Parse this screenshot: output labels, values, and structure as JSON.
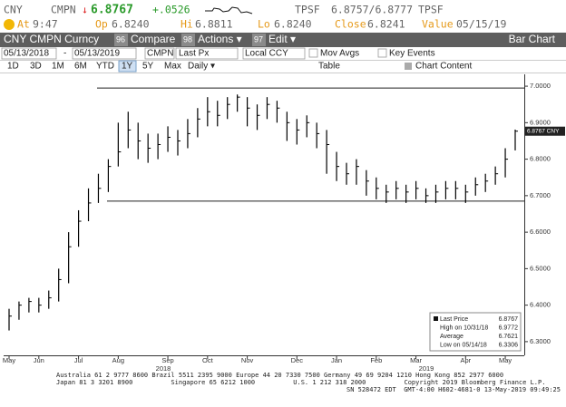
{
  "header": {
    "ticker": "CNY",
    "source": "CMPN",
    "arrow": "↓",
    "last": "6.8767",
    "change": "+.0526",
    "tpsf1": "TPSF",
    "bid_ask": "6.8757/6.8777",
    "tpsf2": "TPSF",
    "at_label": "At",
    "time": "9:47",
    "op_label": "Op",
    "op": "6.8240",
    "hi_label": "Hi",
    "hi": "6.8811",
    "lo_label": "Lo",
    "lo": "6.8240",
    "close_label": "Close",
    "close": "6.8241",
    "value_label": "Value",
    "value_date": "05/15/19"
  },
  "toolbar": {
    "security": "CNY CMPN Curncy",
    "compare_key": "96",
    "compare": "Compare",
    "actions_key": "98",
    "actions": "Actions ▾",
    "edit_key": "97",
    "edit": "Edit ▾",
    "view": "Bar Chart"
  },
  "controls": {
    "start": "05/13/2018",
    "dash": "-",
    "end": "05/13/2019",
    "source": "CMPN",
    "field": "Last Px",
    "currency": "Local CCY",
    "mov_avgs": "Mov Avgs",
    "key_events": "Key Events",
    "periods": [
      "1D",
      "3D",
      "1M",
      "6M",
      "YTD",
      "1Y",
      "5Y",
      "Max"
    ],
    "frequency": "Daily ▾",
    "table": "Table",
    "chart_content": "Chart Content"
  },
  "chart_data": {
    "type": "ohlc",
    "color": "#000000",
    "grid": false,
    "categories": [
      "May",
      null,
      null,
      "Jun",
      null,
      null,
      null,
      "Jul",
      null,
      null,
      null,
      "Aug",
      null,
      null,
      null,
      null,
      "Sep",
      null,
      null,
      null,
      "Oct",
      null,
      null,
      null,
      "Nov",
      null,
      null,
      null,
      null,
      "Dec",
      null,
      null,
      null,
      "Jan",
      null,
      null,
      null,
      "Feb",
      null,
      null,
      null,
      "Mar",
      null,
      null,
      null,
      null,
      "Apr",
      null,
      null,
      null,
      "May",
      null
    ],
    "high": [
      6.39,
      6.41,
      6.42,
      6.42,
      6.44,
      6.5,
      6.6,
      6.66,
      6.72,
      6.76,
      6.8,
      6.9,
      6.93,
      6.9,
      6.87,
      6.87,
      6.89,
      6.88,
      6.91,
      6.94,
      6.97,
      6.96,
      6.97,
      6.9772,
      6.97,
      6.95,
      6.97,
      6.96,
      6.93,
      6.91,
      6.92,
      6.9,
      6.88,
      6.82,
      6.79,
      6.8,
      6.77,
      6.75,
      6.73,
      6.74,
      6.73,
      6.74,
      6.72,
      6.73,
      6.74,
      6.74,
      6.73,
      6.75,
      6.76,
      6.78,
      6.83,
      6.8811
    ],
    "low": [
      6.3306,
      6.36,
      6.38,
      6.38,
      6.39,
      6.41,
      6.46,
      6.56,
      6.63,
      6.68,
      6.71,
      6.78,
      6.83,
      6.8,
      6.79,
      6.8,
      6.82,
      6.81,
      6.83,
      6.86,
      6.89,
      6.89,
      6.91,
      6.93,
      6.89,
      6.88,
      6.91,
      6.9,
      6.85,
      6.84,
      6.86,
      6.83,
      6.76,
      6.74,
      6.73,
      6.73,
      6.7,
      6.69,
      6.68,
      6.69,
      6.68,
      6.69,
      6.68,
      6.68,
      6.69,
      6.69,
      6.68,
      6.7,
      6.71,
      6.73,
      6.75,
      6.824
    ],
    "close": [
      6.37,
      6.4,
      6.41,
      6.4,
      6.42,
      6.47,
      6.56,
      6.63,
      6.68,
      6.72,
      6.78,
      6.82,
      6.88,
      6.85,
      6.83,
      6.84,
      6.86,
      6.85,
      6.87,
      6.91,
      6.93,
      6.92,
      6.95,
      6.97,
      6.94,
      6.92,
      6.95,
      6.94,
      6.9,
      6.88,
      6.9,
      6.87,
      6.84,
      6.78,
      6.76,
      6.78,
      6.74,
      6.72,
      6.71,
      6.72,
      6.71,
      6.72,
      6.7,
      6.71,
      6.72,
      6.72,
      6.71,
      6.73,
      6.74,
      6.76,
      6.8,
      6.8767
    ],
    "years": [
      "2018",
      "2019"
    ],
    "ylim": [
      6.26,
      7.03
    ],
    "yticks": [
      {
        "value": 6.3,
        "label": "6.3000"
      },
      {
        "value": 6.4,
        "label": "6.4000"
      },
      {
        "value": 6.5,
        "label": "6.5000"
      },
      {
        "value": 6.6,
        "label": "6.6000"
      },
      {
        "value": 6.7,
        "label": "6.7000"
      },
      {
        "value": 6.8,
        "label": "6.8000"
      },
      {
        "value": 6.9,
        "label": "6.9000"
      },
      {
        "value": 7.0,
        "label": "7.0000"
      }
    ],
    "reference_lines": [
      6.995,
      6.685
    ],
    "last_label": {
      "value": 6.8767,
      "label": "6.8767 CNY"
    },
    "legend": [
      {
        "label": "Last Price",
        "value": "6.8767"
      },
      {
        "label": "High on 10/31/18",
        "value": "6.9772"
      },
      {
        "label": "Average",
        "value": "6.7621"
      },
      {
        "label": "Low on 05/14/18",
        "value": "6.3306"
      }
    ]
  },
  "footer": {
    "lines": [
      "Australia 61 2 9777 8600 Brazil 5511 2395 9000 Europe 44 20 7330 7500 Germany 49 69 9204 1210 Hong Kong 852 2977 6000",
      "Japan 81 3 3201 8900          Singapore 65 6212 1000          U.S. 1 212 318 2000          Copyright 2019 Bloomberg Finance L.P.",
      "SN 528472 EDT  GMT-4:00 H602-4681-0 13-May-2019 09:49:25"
    ]
  }
}
